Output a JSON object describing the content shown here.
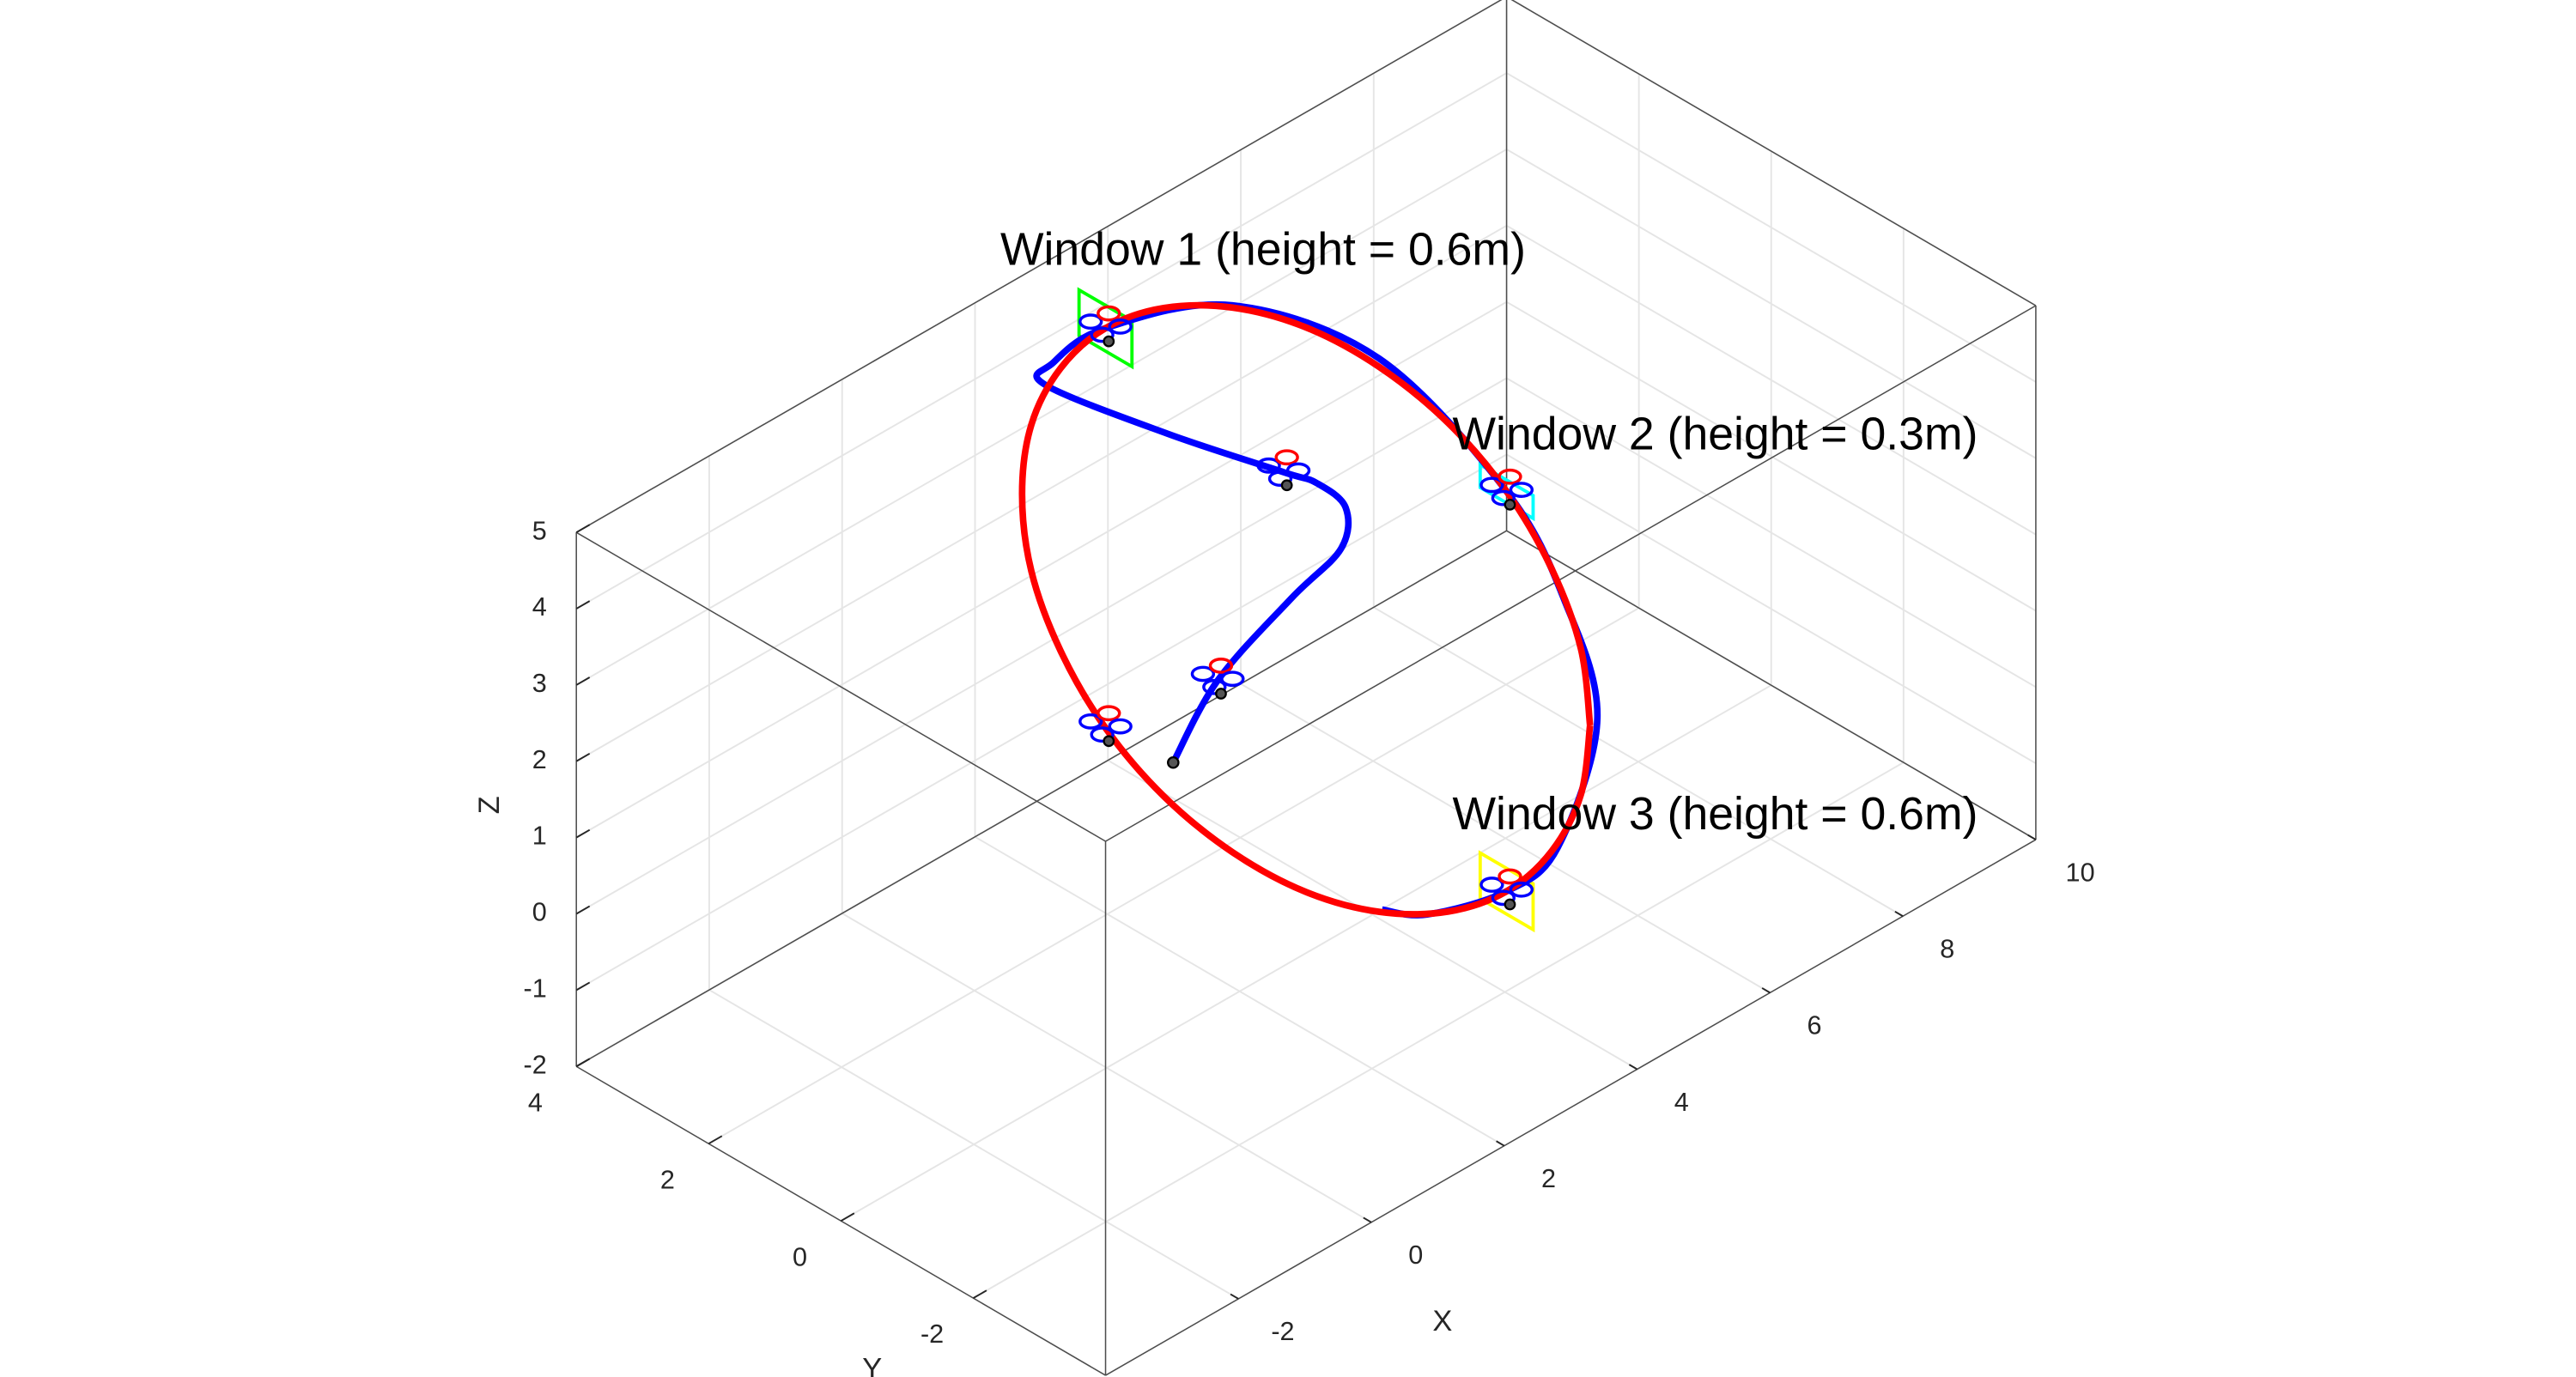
{
  "chart_data": {
    "type": "line3d",
    "xlabel": "X",
    "ylabel": "Y",
    "zlabel": "Z",
    "xlim": [
      -4,
      10
    ],
    "ylim": [
      -4,
      4
    ],
    "zlim": [
      -2,
      5
    ],
    "xticks": [
      -2,
      0,
      2,
      4,
      6,
      8,
      10
    ],
    "yticks": [
      -2,
      0,
      2,
      4
    ],
    "zticks": [
      -2,
      -1,
      0,
      1,
      2,
      3,
      4,
      5
    ],
    "grid": true,
    "series": [
      {
        "color": "#0000ff",
        "x": [
          1,
          1.67,
          3.28,
          4.52,
          5.09,
          5.15,
          5.15,
          3.91,
          2.26,
          2.18,
          2.54,
          2.83,
          3.2,
          3.46,
          3.6,
          3.7,
          3.6,
          3.46,
          3.28,
          3.15
        ],
        "y": [
          0,
          0,
          0.5,
          1,
          1.5,
          2,
          2.5,
          3,
          3.2,
          3,
          2.57,
          0.94,
          -0.9,
          -2.57,
          -3.3,
          -3.7,
          -3.2,
          -2.57,
          -1.55,
          -1.0
        ],
        "z": [
          1.5,
          2.24,
          2.26,
          2.03,
          2.03,
          2.07,
          1.96,
          2.83,
          4.2,
          4.63,
          5.12,
          6.1,
          6.15,
          5.12,
          4.0,
          2.6,
          0.7,
          -0.12,
          -0.85,
          -1.0
        ]
      },
      {
        "color": "#ff0000",
        "x": [
          3.65,
          3.63,
          3.56,
          3.46,
          3.33,
          3.17,
          3.0,
          2.83,
          2.67,
          2.54,
          2.44,
          2.37,
          2.35,
          2.37,
          2.44,
          2.54,
          2.67,
          2.83,
          3.0,
          3.17,
          3.33,
          3.46,
          3.56,
          3.63,
          3.65
        ],
        "y": [
          -3.64,
          -3.52,
          -3.15,
          -2.57,
          -1.82,
          -0.94,
          0,
          0.94,
          1.82,
          2.57,
          3.15,
          3.52,
          3.64,
          3.52,
          3.15,
          2.57,
          1.82,
          0.94,
          0,
          -0.94,
          -1.82,
          -2.57,
          -3.15,
          -3.52,
          -3.64
        ],
        "z": [
          2.5,
          3.46,
          4.35,
          5.12,
          5.7,
          6.07,
          6.2,
          6.07,
          5.7,
          5.12,
          4.35,
          3.46,
          2.5,
          1.54,
          0.65,
          -0.12,
          -0.7,
          -1.07,
          -1.2,
          -1.07,
          -0.7,
          -0.12,
          0.65,
          1.54,
          2.5
        ]
      }
    ],
    "windows": [
      {
        "label": "Window 1 (height = 0.6m)",
        "height": 0.6,
        "color": "#00ff00",
        "x": 2.54,
        "y": 2.57,
        "z": 5.12
      },
      {
        "label": "Window 2 (height = 0.3m)",
        "height": 0.3,
        "color": "#00ffff",
        "x": 3.46,
        "y": -2.57,
        "z": 5.12
      },
      {
        "label": "Window 3 (height = 0.6m)",
        "height": 0.6,
        "color": "#ffff00",
        "x": 3.46,
        "y": -2.57,
        "z": -0.12
      }
    ],
    "drones": {
      "x": [
        1.67,
        5.15,
        2.54,
        2.54,
        3.46,
        3.46
      ],
      "y": [
        0,
        2.5,
        2.57,
        2.57,
        -2.57,
        -2.57
      ],
      "z": [
        2.24,
        1.96,
        -0.12,
        5.12,
        5.12,
        -0.12
      ]
    }
  }
}
